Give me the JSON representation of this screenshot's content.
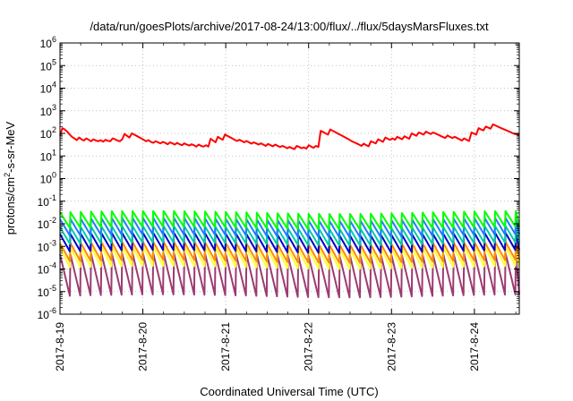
{
  "chart_data": {
    "type": "line",
    "title": "/data/run/goesPlots/archive/2017-08-24/13:00/flux/../flux/5daysMarsFluxes.txt",
    "xlabel": "Coordinated Universal Time (UTC)",
    "ylabel": {
      "pre": "protons/cm",
      "sup": "2",
      "post": "-s-sr-MeV"
    },
    "y_scale": "log",
    "ylim": [
      1e-06,
      1000000.0
    ],
    "y_ticks": [
      {
        "base": "10",
        "exp": "-6"
      },
      {
        "base": "10",
        "exp": "-5"
      },
      {
        "base": "10",
        "exp": "-4"
      },
      {
        "base": "10",
        "exp": "-3"
      },
      {
        "base": "10",
        "exp": "-2"
      },
      {
        "base": "10",
        "exp": "-1"
      },
      {
        "base": "10",
        "exp": "0"
      },
      {
        "base": "10",
        "exp": "1"
      },
      {
        "base": "10",
        "exp": "2"
      },
      {
        "base": "10",
        "exp": "3"
      },
      {
        "base": "10",
        "exp": "4"
      },
      {
        "base": "10",
        "exp": "5"
      },
      {
        "base": "10",
        "exp": "6"
      }
    ],
    "xlim": [
      "2017-08-19T00:00",
      "2017-08-24T13:00"
    ],
    "x_ticks": [
      "2017-8-19",
      "2017-8-20",
      "2017-8-21",
      "2017-8-22",
      "2017-8-23",
      "2017-8-24"
    ],
    "grid": true,
    "legend": "none",
    "sawtooth_period_hours": 3,
    "series": [
      {
        "color": "#ff0000",
        "values": [
          80,
          170,
          150,
          120,
          90,
          70,
          60,
          50,
          65,
          55,
          48,
          60,
          52,
          45,
          55,
          48,
          45,
          50,
          43,
          52,
          47,
          45,
          60,
          55,
          48,
          45,
          55,
          95,
          78,
          65,
          100,
          88,
          78,
          68,
          60,
          52,
          45,
          50,
          42,
          38,
          45,
          40,
          36,
          42,
          38,
          33,
          40,
          36,
          32,
          38,
          33,
          30,
          36,
          32,
          29,
          33,
          30,
          26,
          32,
          28,
          26,
          30,
          26,
          58,
          48,
          40,
          70,
          60,
          52,
          90,
          78,
          68,
          60,
          52,
          46,
          52,
          46,
          40,
          46,
          40,
          35,
          40,
          36,
          32,
          36,
          32,
          28,
          34,
          30,
          27,
          32,
          28,
          25,
          28,
          25,
          22,
          25,
          22,
          20,
          28,
          25,
          22,
          24,
          21,
          30,
          26,
          23,
          28,
          25,
          130,
          115,
          100,
          88,
          150,
          130,
          115,
          100,
          88,
          78,
          68,
          60,
          52,
          45,
          40,
          36,
          32,
          28,
          35,
          30,
          27,
          45,
          40,
          36,
          55,
          48,
          42,
          65,
          58,
          52,
          60,
          52,
          70,
          62,
          55,
          75,
          66,
          58,
          100,
          88,
          78,
          110,
          98,
          88,
          120,
          105,
          94,
          110,
          98,
          88,
          78,
          70,
          62,
          80,
          70,
          62,
          70,
          62,
          55,
          48,
          60,
          52,
          46,
          110,
          98,
          88,
          170,
          150,
          135,
          200,
          180,
          160,
          250,
          225,
          200,
          180,
          160,
          145,
          130,
          118,
          105,
          95,
          90,
          85
        ]
      },
      {
        "color": "#00ff00",
        "period_hours": 3,
        "peak": 0.032,
        "trough": 0.0065
      },
      {
        "color": "#1e7bff",
        "period_hours": 3,
        "peak": 0.016,
        "trough": 0.003
      },
      {
        "color": "#00cca3",
        "period_hours": 3,
        "peak": 0.007,
        "trough": 0.0013
      },
      {
        "color": "#0000cc",
        "period_hours": 3,
        "peak": 0.0035,
        "trough": 0.0006
      },
      {
        "color": "#ff8c00",
        "period_hours": 3,
        "peak": 0.0014,
        "trough": 0.00022
      },
      {
        "color": "#ffff33",
        "period_hours": 3,
        "peak": 0.0009,
        "trough": 0.00012
      },
      {
        "color": "#9c3b71",
        "period_hours": 3,
        "peak": 0.00045,
        "trough": 6.5e-06
      }
    ]
  }
}
